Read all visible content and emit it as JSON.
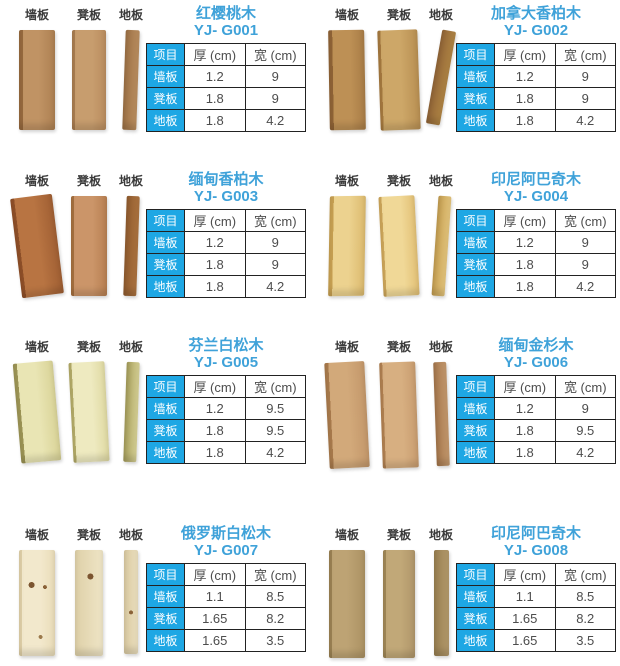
{
  "colors": {
    "accent_blue": "#1ea7e4",
    "title_blue": "#3fa2d9",
    "table_border": "#222222",
    "text_dark": "#4d4d4d",
    "label_dark": "#3b3b3b"
  },
  "plank_labels": [
    "墙板",
    "凳板",
    "地板"
  ],
  "table_header": [
    "项目",
    "厚 (cm)",
    "宽 (cm)"
  ],
  "products": [
    {
      "name": "红樱桃木",
      "model": "YJ- G001",
      "rows": [
        [
          "墙板",
          "1.2",
          "9"
        ],
        [
          "凳板",
          "1.8",
          "9"
        ],
        [
          "地板",
          "1.8",
          "4.2"
        ]
      ]
    },
    {
      "name": "加拿大香柏木",
      "model": "YJ- G002",
      "rows": [
        [
          "墙板",
          "1.2",
          "9"
        ],
        [
          "凳板",
          "1.8",
          "9"
        ],
        [
          "地板",
          "1.8",
          "4.2"
        ]
      ]
    },
    {
      "name": "缅甸香柏木",
      "model": "YJ- G003",
      "rows": [
        [
          "墙板",
          "1.2",
          "9"
        ],
        [
          "凳板",
          "1.8",
          "9"
        ],
        [
          "地板",
          "1.8",
          "4.2"
        ]
      ]
    },
    {
      "name": "印尼阿巴奇木",
      "model": "YJ- G004",
      "rows": [
        [
          "墙板",
          "1.2",
          "9"
        ],
        [
          "凳板",
          "1.8",
          "9"
        ],
        [
          "地板",
          "1.8",
          "4.2"
        ]
      ]
    },
    {
      "name": "芬兰白松木",
      "model": "YJ- G005",
      "rows": [
        [
          "墙板",
          "1.2",
          "9.5"
        ],
        [
          "凳板",
          "1.8",
          "9.5"
        ],
        [
          "地板",
          "1.8",
          "4.2"
        ]
      ]
    },
    {
      "name": "缅甸金杉木",
      "model": "YJ- G006",
      "rows": [
        [
          "墙板",
          "1.2",
          "9"
        ],
        [
          "凳板",
          "1.8",
          "9.5"
        ],
        [
          "地板",
          "1.8",
          "4.2"
        ]
      ]
    },
    {
      "name": "俄罗斯白松木",
      "model": "YJ- G007",
      "rows": [
        [
          "墙板",
          "1.1",
          "8.5"
        ],
        [
          "凳板",
          "1.65",
          "8.2"
        ],
        [
          "地板",
          "1.65",
          "3.5"
        ]
      ]
    },
    {
      "name": "印尼阿巴奇木",
      "model": "YJ- G008",
      "rows": [
        [
          "墙板",
          "1.1",
          "8.5"
        ],
        [
          "凳板",
          "1.65",
          "8.2"
        ],
        [
          "地板",
          "1.65",
          "3.5"
        ]
      ]
    }
  ]
}
